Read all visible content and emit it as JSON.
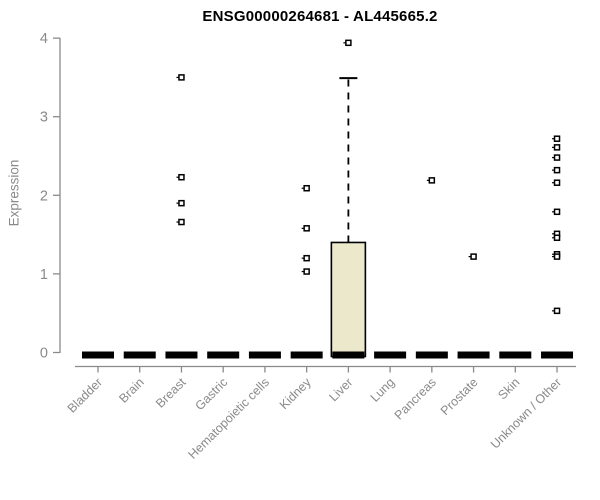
{
  "chart_data": {
    "type": "boxplot",
    "title": "ENSG00000264681 - AL445665.2",
    "xlabel": "",
    "ylabel": "Expression",
    "ylim": [
      0,
      4
    ],
    "yticks": [
      0,
      1,
      2,
      3,
      4
    ],
    "grid": false,
    "legend": false,
    "categories": [
      "Bladder",
      "Brain",
      "Breast",
      "Gastric",
      "Hematopoietic cells",
      "Kidney",
      "Liver",
      "Lung",
      "Pancreas",
      "Prostate",
      "Skin",
      "Unknown / Other"
    ],
    "boxes": [
      {
        "category": "Bladder",
        "q1": 0,
        "median": 0,
        "q3": 0,
        "whisker_low": 0,
        "whisker_high": 0,
        "outliers": []
      },
      {
        "category": "Brain",
        "q1": 0,
        "median": 0,
        "q3": 0,
        "whisker_low": 0,
        "whisker_high": 0,
        "outliers": []
      },
      {
        "category": "Breast",
        "q1": 0,
        "median": 0,
        "q3": 0,
        "whisker_low": 0,
        "whisker_high": 0,
        "outliers": [
          3.5,
          2.23,
          1.9,
          1.66
        ]
      },
      {
        "category": "Gastric",
        "q1": 0,
        "median": 0,
        "q3": 0,
        "whisker_low": 0,
        "whisker_high": 0,
        "outliers": []
      },
      {
        "category": "Hematopoietic cells",
        "q1": 0,
        "median": 0,
        "q3": 0,
        "whisker_low": 0,
        "whisker_high": 0,
        "outliers": []
      },
      {
        "category": "Kidney",
        "q1": 0,
        "median": 0,
        "q3": 0,
        "whisker_low": 0,
        "whisker_high": 0,
        "outliers": [
          2.09,
          1.58,
          1.2,
          1.03
        ]
      },
      {
        "category": "Liver",
        "q1": 0,
        "median": 0,
        "q3": 1.4,
        "whisker_low": 0,
        "whisker_high": 3.49,
        "outliers": [
          3.94
        ]
      },
      {
        "category": "Lung",
        "q1": 0,
        "median": 0,
        "q3": 0,
        "whisker_low": 0,
        "whisker_high": 0,
        "outliers": []
      },
      {
        "category": "Pancreas",
        "q1": 0,
        "median": 0,
        "q3": 0,
        "whisker_low": 0,
        "whisker_high": 0,
        "outliers": [
          2.19
        ]
      },
      {
        "category": "Prostate",
        "q1": 0,
        "median": 0,
        "q3": 0,
        "whisker_low": 0,
        "whisker_high": 0,
        "outliers": [
          1.22
        ]
      },
      {
        "category": "Skin",
        "q1": 0,
        "median": 0,
        "q3": 0,
        "whisker_low": 0,
        "whisker_high": 0,
        "outliers": []
      },
      {
        "category": "Unknown / Other",
        "q1": 0,
        "median": 0,
        "q3": 0,
        "whisker_low": 0,
        "whisker_high": 0,
        "outliers": [
          2.72,
          2.61,
          2.48,
          2.32,
          2.16,
          1.79,
          1.51,
          1.46,
          1.25,
          1.22,
          0.53
        ]
      }
    ],
    "colors": {
      "background": "#ffffff",
      "box_fill": "#ece8cc",
      "box_stroke": "#000000",
      "median": "#000000",
      "whisker": "#000000",
      "outlier_stroke": "#000000",
      "outlier_fill": "#ffffff",
      "axis": "#8a8a8a",
      "tick_label": "#8a8a8a",
      "title": "#000000"
    }
  }
}
